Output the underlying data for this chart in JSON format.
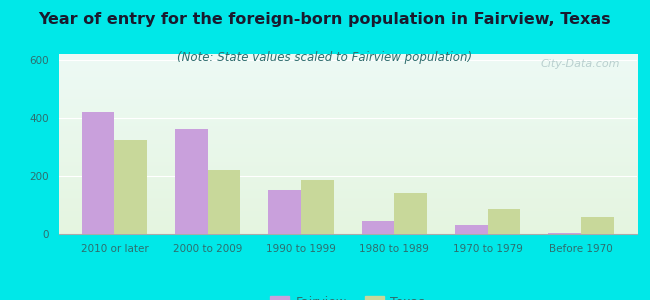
{
  "title": "Year of entry for the foreign-born population in Fairview, Texas",
  "subtitle": "(Note: State values scaled to Fairview population)",
  "categories": [
    "2010 or later",
    "2000 to 2009",
    "1990 to 1999",
    "1980 to 1989",
    "1970 to 1979",
    "Before 1970"
  ],
  "fairview_values": [
    420,
    360,
    150,
    45,
    30,
    5
  ],
  "texas_values": [
    325,
    220,
    185,
    140,
    85,
    60
  ],
  "fairview_color": "#c9a0dc",
  "texas_color": "#c8d89a",
  "background_outer": "#00e8e8",
  "background_inner_top": "#edfaf5",
  "background_inner_bottom": "#e5f5e0",
  "ylim": [
    0,
    620
  ],
  "yticks": [
    0,
    200,
    400,
    600
  ],
  "bar_width": 0.35,
  "legend_labels": [
    "Fairview",
    "Texas"
  ],
  "title_fontsize": 11.5,
  "subtitle_fontsize": 8.5,
  "tick_fontsize": 7.5,
  "legend_fontsize": 9,
  "watermark_text": "City-Data.com",
  "title_color": "#1a1a2e",
  "subtitle_color": "#2e6e6e",
  "tick_color": "#2e6e6e"
}
